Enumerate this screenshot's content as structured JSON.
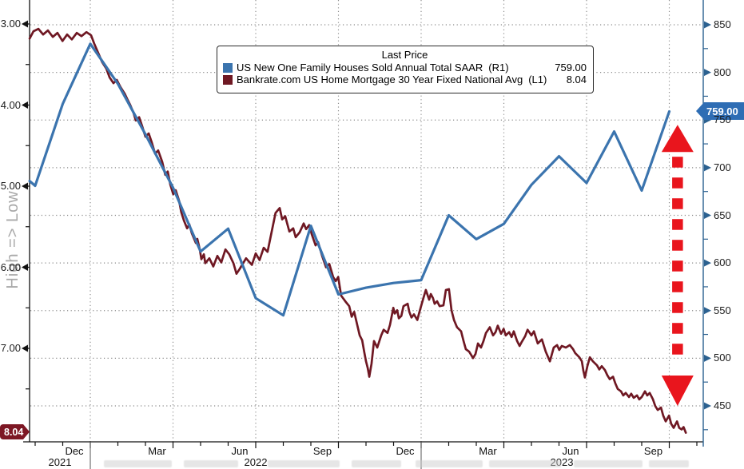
{
  "legend": {
    "title": "Last Price",
    "rows": [
      {
        "swatch_color": "#3b74ae",
        "label": "US New One Family Houses Sold Annual Total SAAR",
        "axis_code": "(R1)",
        "value": "759.00"
      },
      {
        "swatch_color": "#6f1823",
        "label": "Bankrate.com US Home Mortgage 30 Year Fixed National Avg",
        "axis_code": "(L1)",
        "value": "8.04"
      }
    ]
  },
  "axes": {
    "left": {
      "rotated_label": "High => Low",
      "tick_labels": [
        "3.00",
        "4.00",
        "5.00",
        "6.00",
        "7.00"
      ],
      "badge": "8.04",
      "inverted": true
    },
    "right": {
      "tick_labels": [
        "850",
        "800",
        "750",
        "700",
        "650",
        "600",
        "550",
        "500",
        "450"
      ],
      "badge": "759.00"
    },
    "bottom": {
      "month_labels": [
        "Dec",
        "Mar",
        "Jun",
        "Sep",
        "Dec",
        "Mar",
        "Jun",
        "Sep"
      ],
      "year_labels": [
        "2021",
        "2022",
        "2023"
      ]
    }
  },
  "chart_data": {
    "type": "line",
    "title": "Last Price",
    "left_axis": {
      "label": "High => Low",
      "inverted": true,
      "min": 3.0,
      "max": 8.0,
      "tick_step": 1.0,
      "last_value": 8.04
    },
    "right_axis": {
      "min": 450,
      "max": 850,
      "tick_step": 50,
      "last_value": 759.0
    },
    "x_axis": {
      "unit": "months_since_Oct_2021",
      "quarter_gridlines_t": [
        3,
        6,
        9,
        12,
        15,
        18,
        21,
        24
      ],
      "quarter_labels": [
        "Dec 2021",
        "Mar 2022",
        "Jun 2022",
        "Sep 2022",
        "Dec 2022",
        "Mar 2023",
        "Jun 2023",
        "Sep 2023"
      ]
    },
    "grid": {
      "horizontal_at_right_values": [
        850,
        800,
        750,
        700,
        650,
        600,
        550,
        500,
        450
      ],
      "style": "dotted"
    },
    "series": [
      {
        "name": "US New One Family Houses Sold Annual Total SAAR",
        "axis": "R1",
        "color": "#3b74ae",
        "frequency": "monthly",
        "months": [
          "Oct-21",
          "Nov-21",
          "Dec-21",
          "Jan-22",
          "Feb-22",
          "Mar-22",
          "Apr-22",
          "May-22",
          "Jun-22",
          "Jul-22",
          "Aug-22",
          "Sep-22",
          "Oct-22",
          "Nov-22",
          "Dec-22",
          "Jan-23",
          "Feb-23",
          "Mar-23",
          "Apr-23",
          "May-23",
          "Jun-23",
          "Jul-23",
          "Aug-23",
          "Sep-23"
        ],
        "values": [
          681,
          767,
          830,
          788,
          735,
          679,
          612,
          636,
          563,
          545,
          639,
          567,
          574,
          579,
          582,
          650,
          625,
          641,
          682,
          712,
          684,
          738,
          676,
          759
        ],
        "lead_point": [
          0.8,
          686
        ]
      },
      {
        "name": "Bankrate.com US Home Mortgage 30 Year Fixed National Avg",
        "axis": "L1",
        "color": "#6f1823",
        "frequency": "daily",
        "points": [
          [
            0.8,
            3.18
          ],
          [
            0.94,
            3.09
          ],
          [
            1.12,
            3.06
          ],
          [
            1.29,
            3.13
          ],
          [
            1.46,
            3.08
          ],
          [
            1.64,
            3.16
          ],
          [
            1.81,
            3.11
          ],
          [
            1.99,
            3.21
          ],
          [
            2.16,
            3.13
          ],
          [
            2.33,
            3.19
          ],
          [
            2.51,
            3.11
          ],
          [
            2.68,
            3.15
          ],
          [
            2.86,
            3.1
          ],
          [
            3.03,
            3.14
          ],
          [
            3.14,
            3.24
          ],
          [
            3.29,
            3.36
          ],
          [
            3.43,
            3.47
          ],
          [
            3.58,
            3.55
          ],
          [
            3.7,
            3.66
          ],
          [
            3.84,
            3.73
          ],
          [
            3.96,
            3.69
          ],
          [
            4.1,
            3.78
          ],
          [
            4.25,
            3.86
          ],
          [
            4.36,
            3.94
          ],
          [
            4.45,
            4.0
          ],
          [
            4.57,
            4.1
          ],
          [
            4.65,
            4.19
          ],
          [
            4.77,
            4.15
          ],
          [
            4.88,
            4.26
          ],
          [
            5.0,
            4.39
          ],
          [
            5.12,
            4.35
          ],
          [
            5.23,
            4.46
          ],
          [
            5.35,
            4.6
          ],
          [
            5.46,
            4.56
          ],
          [
            5.61,
            4.7
          ],
          [
            5.72,
            4.86
          ],
          [
            5.81,
            4.82
          ],
          [
            5.9,
            4.98
          ],
          [
            6.01,
            5.1
          ],
          [
            6.1,
            5.05
          ],
          [
            6.22,
            5.18
          ],
          [
            6.3,
            5.32
          ],
          [
            6.39,
            5.42
          ],
          [
            6.51,
            5.52
          ],
          [
            6.59,
            5.47
          ],
          [
            6.68,
            5.58
          ],
          [
            6.83,
            5.7
          ],
          [
            6.88,
            5.65
          ],
          [
            6.97,
            5.78
          ],
          [
            7.03,
            5.9
          ],
          [
            7.12,
            5.84
          ],
          [
            7.17,
            5.95
          ],
          [
            7.32,
            5.89
          ],
          [
            7.46,
            5.99
          ],
          [
            7.61,
            5.86
          ],
          [
            7.75,
            5.94
          ],
          [
            7.9,
            5.78
          ],
          [
            8.04,
            5.84
          ],
          [
            8.19,
            5.95
          ],
          [
            8.3,
            6.08
          ],
          [
            8.42,
            6.02
          ],
          [
            8.65,
            5.89
          ],
          [
            8.86,
            5.97
          ],
          [
            9.0,
            5.83
          ],
          [
            9.14,
            5.91
          ],
          [
            9.29,
            5.76
          ],
          [
            9.43,
            5.81
          ],
          [
            9.58,
            5.56
          ],
          [
            9.72,
            5.33
          ],
          [
            9.87,
            5.27
          ],
          [
            9.96,
            5.41
          ],
          [
            10.07,
            5.37
          ],
          [
            10.22,
            5.56
          ],
          [
            10.36,
            5.52
          ],
          [
            10.45,
            5.63
          ],
          [
            10.59,
            5.57
          ],
          [
            10.74,
            5.46
          ],
          [
            10.83,
            5.53
          ],
          [
            10.94,
            5.48
          ],
          [
            11.03,
            5.59
          ],
          [
            11.17,
            5.73
          ],
          [
            11.26,
            5.69
          ],
          [
            11.41,
            5.86
          ],
          [
            11.55,
            6.0
          ],
          [
            11.67,
            5.96
          ],
          [
            11.81,
            6.12
          ],
          [
            11.9,
            6.17
          ],
          [
            11.99,
            6.12
          ],
          [
            12.1,
            6.35
          ],
          [
            12.25,
            6.42
          ],
          [
            12.39,
            6.48
          ],
          [
            12.48,
            6.61
          ],
          [
            12.57,
            6.55
          ],
          [
            12.68,
            6.71
          ],
          [
            12.77,
            6.84
          ],
          [
            12.86,
            6.9
          ],
          [
            12.94,
            7.05
          ],
          [
            13.0,
            7.16
          ],
          [
            13.06,
            7.24
          ],
          [
            13.12,
            7.35
          ],
          [
            13.2,
            7.19
          ],
          [
            13.29,
            6.91
          ],
          [
            13.41,
            6.99
          ],
          [
            13.55,
            6.84
          ],
          [
            13.64,
            6.77
          ],
          [
            13.78,
            6.81
          ],
          [
            13.87,
            6.71
          ],
          [
            13.99,
            6.5
          ],
          [
            14.04,
            6.57
          ],
          [
            14.13,
            6.53
          ],
          [
            14.19,
            6.63
          ],
          [
            14.28,
            6.6
          ],
          [
            14.36,
            6.48
          ],
          [
            14.51,
            6.45
          ],
          [
            14.57,
            6.55
          ],
          [
            14.65,
            6.62
          ],
          [
            14.74,
            6.58
          ],
          [
            14.86,
            6.65
          ],
          [
            14.94,
            6.55
          ],
          [
            15.09,
            6.37
          ],
          [
            15.17,
            6.28
          ],
          [
            15.29,
            6.4
          ],
          [
            15.35,
            6.33
          ],
          [
            15.43,
            6.38
          ],
          [
            15.49,
            6.45
          ],
          [
            15.58,
            6.42
          ],
          [
            15.67,
            6.48
          ],
          [
            15.81,
            6.47
          ],
          [
            15.9,
            6.28
          ],
          [
            16.01,
            6.27
          ],
          [
            16.1,
            6.53
          ],
          [
            16.19,
            6.65
          ],
          [
            16.3,
            6.74
          ],
          [
            16.45,
            6.79
          ],
          [
            16.54,
            6.91
          ],
          [
            16.62,
            7.01
          ],
          [
            16.74,
            7.04
          ],
          [
            16.83,
            7.09
          ],
          [
            16.88,
            7.12
          ],
          [
            16.97,
            7.07
          ],
          [
            17.06,
            6.94
          ],
          [
            17.17,
            6.99
          ],
          [
            17.26,
            6.91
          ],
          [
            17.35,
            6.81
          ],
          [
            17.49,
            6.74
          ],
          [
            17.61,
            6.84
          ],
          [
            17.7,
            6.8
          ],
          [
            17.78,
            6.72
          ],
          [
            17.9,
            6.82
          ],
          [
            17.99,
            6.76
          ],
          [
            18.07,
            6.84
          ],
          [
            18.19,
            6.8
          ],
          [
            18.28,
            6.86
          ],
          [
            18.36,
            6.79
          ],
          [
            18.48,
            6.91
          ],
          [
            18.57,
            6.97
          ],
          [
            18.65,
            6.92
          ],
          [
            18.77,
            6.85
          ],
          [
            18.86,
            6.77
          ],
          [
            19.0,
            6.84
          ],
          [
            19.09,
            6.79
          ],
          [
            19.23,
            6.94
          ],
          [
            19.38,
            6.89
          ],
          [
            19.52,
            7.04
          ],
          [
            19.67,
            7.16
          ],
          [
            19.81,
            6.99
          ],
          [
            19.93,
            6.96
          ],
          [
            20.01,
            7.02
          ],
          [
            20.1,
            6.97
          ],
          [
            20.25,
            6.99
          ],
          [
            20.39,
            6.96
          ],
          [
            20.51,
            7.01
          ],
          [
            20.59,
            7.06
          ],
          [
            20.74,
            7.11
          ],
          [
            20.83,
            7.16
          ],
          [
            20.88,
            7.27
          ],
          [
            20.94,
            7.36
          ],
          [
            21.03,
            7.22
          ],
          [
            21.12,
            7.11
          ],
          [
            21.23,
            7.16
          ],
          [
            21.38,
            7.21
          ],
          [
            21.46,
            7.26
          ],
          [
            21.55,
            7.22
          ],
          [
            21.67,
            7.27
          ],
          [
            21.75,
            7.33
          ],
          [
            21.84,
            7.38
          ],
          [
            21.96,
            7.35
          ],
          [
            22.04,
            7.43
          ],
          [
            22.13,
            7.5
          ],
          [
            22.25,
            7.53
          ],
          [
            22.33,
            7.58
          ],
          [
            22.42,
            7.55
          ],
          [
            22.54,
            7.6
          ],
          [
            22.62,
            7.56
          ],
          [
            22.71,
            7.61
          ],
          [
            22.83,
            7.58
          ],
          [
            22.91,
            7.63
          ],
          [
            23.0,
            7.6
          ],
          [
            23.12,
            7.53
          ],
          [
            23.2,
            7.58
          ],
          [
            23.29,
            7.55
          ],
          [
            23.41,
            7.63
          ],
          [
            23.49,
            7.71
          ],
          [
            23.58,
            7.76
          ],
          [
            23.7,
            7.73
          ],
          [
            23.78,
            7.83
          ],
          [
            23.87,
            7.9
          ],
          [
            23.99,
            7.83
          ],
          [
            24.07,
            7.93
          ],
          [
            24.16,
            7.98
          ],
          [
            24.28,
            7.9
          ],
          [
            24.36,
            7.98
          ],
          [
            24.45,
            8.0
          ],
          [
            24.52,
            7.97
          ],
          [
            24.6,
            8.04
          ]
        ]
      }
    ],
    "annotation_arrow": {
      "shape": "vertical-double-headed-dashed-arrow",
      "color": "#e9151d",
      "x_month": 24.3,
      "top_value_right_axis": 745,
      "bottom_value_right_axis": 450
    },
    "colors": {
      "blue_series": "#3b74ae",
      "dark_red_series": "#6f1823",
      "arrow_red": "#e9151d",
      "right_axis": "#2b6190",
      "gridline": "#8a8a8a",
      "badge_blue": "#2e6db4",
      "badge_red": "#7d1724"
    }
  }
}
